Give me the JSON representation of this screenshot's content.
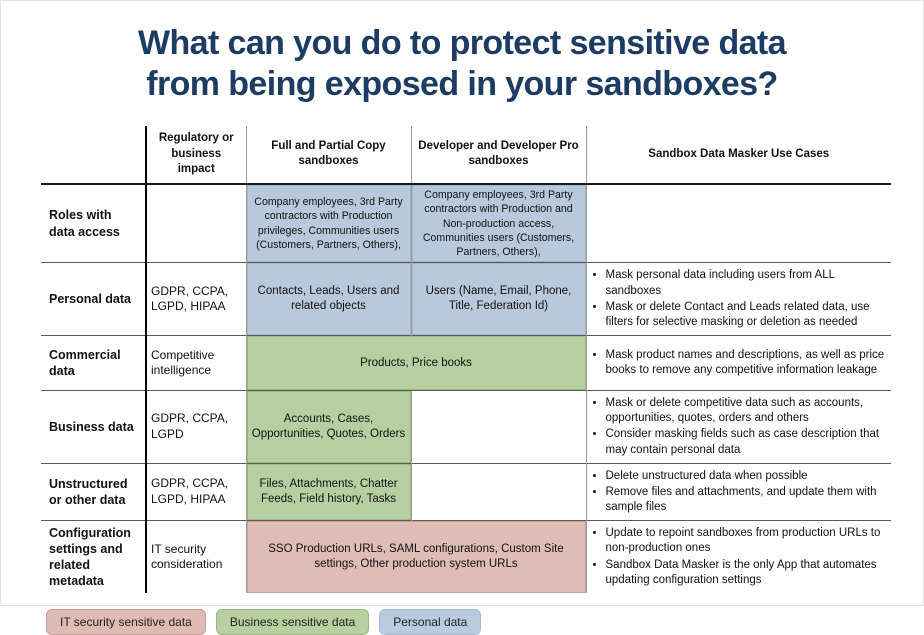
{
  "title": {
    "line1": "What can you do to protect sensitive data",
    "line2": "from being exposed in your sandboxes?"
  },
  "colors": {
    "title_navy": "#1d3c63",
    "personal_blue": "#b9c9dc",
    "business_green": "#b6cfa0",
    "it_security_pink": "#debdb6"
  },
  "table": {
    "headers": {
      "regulatory": "Regulatory or business impact",
      "full_partial": "Full and Partial Copy sandboxes",
      "developer": "Developer and Developer Pro sandboxes",
      "use_cases": "Sandbox Data Masker Use Cases"
    },
    "rows": [
      {
        "label": "Roles with data access",
        "regulatory": "",
        "full_partial": "Company employees, 3rd Party contractors with Production privileges, Communities users (Customers, Partners, Others),",
        "developer": "Company employees, 3rd Party contractors with Production and Non-production access, Communities users (Customers, Partners, Others),",
        "use_cases": []
      },
      {
        "label": "Personal data",
        "regulatory": "GDPR, CCPA, LGPD, HIPAA",
        "full_partial": "Contacts, Leads, Users and related objects",
        "developer": "Users (Name, Email, Phone, Title, Federation Id)",
        "use_cases": [
          "Mask personal data including users from ALL sandboxes",
          "Mask or delete Contact and Leads related data, use filters for selective masking or deletion as needed"
        ]
      },
      {
        "label": "Commercial data",
        "regulatory": "Competitive intelligence",
        "spanning": "Products, Price books",
        "use_cases": [
          "Mask product names and descriptions, as well as price books to remove any competitive information leakage"
        ]
      },
      {
        "label": "Business data",
        "regulatory": "GDPR, CCPA, LGPD",
        "full_partial": "Accounts, Cases, Opportunities, Quotes, Orders",
        "developer": "",
        "use_cases": [
          "Mask or delete competitive data such as accounts, opportunities, quotes, orders and others",
          "Consider masking fields such as case description that may contain personal data"
        ]
      },
      {
        "label": "Unstructured or other data",
        "regulatory": "GDPR, CCPA, LGPD, HIPAA",
        "full_partial": "Files, Attachments, Chatter Feeds, Field history, Tasks",
        "developer": "",
        "use_cases": [
          "Delete unstructured data when possible",
          "Remove files and attachments, and update them with sample files"
        ]
      },
      {
        "label": "Configuration settings and related metadata",
        "regulatory": "IT security consideration",
        "spanning": "SSO Production URLs, SAML configurations, Custom Site settings, Other production system URLs",
        "use_cases": [
          "Update to repoint sandboxes from production URLs to non-production ones",
          "Sandbox Data Masker is the only App that automates updating configuration settings"
        ]
      }
    ]
  },
  "legend": {
    "items": [
      {
        "label": "IT security sensitive data",
        "color": "#debcb5"
      },
      {
        "label": "Business sensitive data",
        "color": "#b8cfa0"
      },
      {
        "label": "Personal data",
        "color": "#b9cbdf"
      }
    ]
  }
}
